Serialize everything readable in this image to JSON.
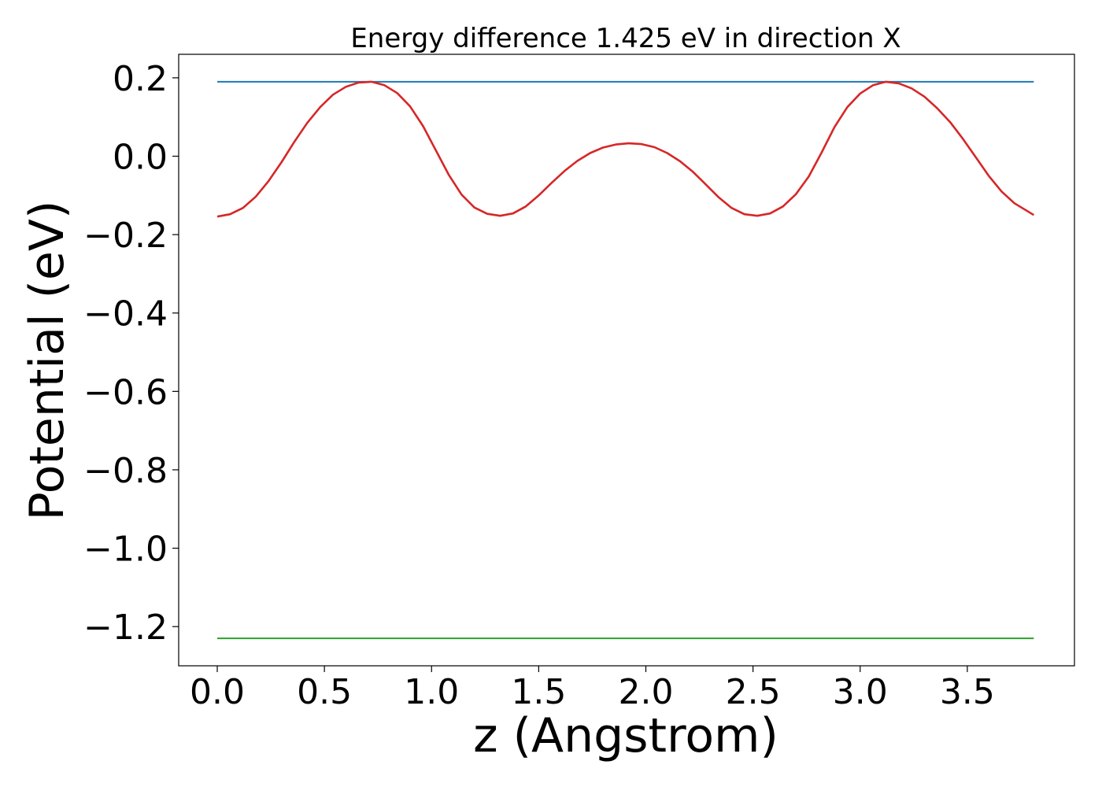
{
  "chart_data": {
    "type": "line",
    "title": "Energy difference 1.425 eV in direction X",
    "xlabel": "z (Angstrom)",
    "ylabel": "Potential (eV)",
    "xlim": [
      -0.18,
      4.0
    ],
    "ylim": [
      -1.3,
      0.26
    ],
    "xticks": [
      0.0,
      0.5,
      1.0,
      1.5,
      2.0,
      2.5,
      3.0,
      3.5
    ],
    "xtick_labels": [
      "0.0",
      "0.5",
      "1.0",
      "1.5",
      "2.0",
      "2.5",
      "3.0",
      "3.5"
    ],
    "yticks": [
      0.2,
      0.0,
      -0.2,
      -0.4,
      -0.6,
      -0.8,
      -1.0,
      -1.2
    ],
    "ytick_labels": [
      "0.2",
      "0.0",
      "−0.2",
      "−0.4",
      "−0.6",
      "−0.8",
      "−1.0",
      "−1.2"
    ],
    "grid": false,
    "series": [
      {
        "color": "#1f77b4",
        "x": [
          0.0,
          3.81
        ],
        "y": [
          0.19,
          0.19
        ]
      },
      {
        "color": "#2ca02c",
        "x": [
          0.0,
          3.81
        ],
        "y": [
          -1.23,
          -1.23
        ]
      },
      {
        "color": "#d62728",
        "x": [
          0.0,
          0.06,
          0.12,
          0.18,
          0.24,
          0.3,
          0.36,
          0.42,
          0.48,
          0.54,
          0.6,
          0.66,
          0.72,
          0.78,
          0.84,
          0.9,
          0.96,
          1.02,
          1.08,
          1.14,
          1.2,
          1.26,
          1.32,
          1.38,
          1.44,
          1.5,
          1.56,
          1.62,
          1.68,
          1.74,
          1.8,
          1.86,
          1.92,
          1.98,
          2.04,
          2.1,
          2.16,
          2.22,
          2.28,
          2.34,
          2.4,
          2.46,
          2.52,
          2.58,
          2.64,
          2.7,
          2.76,
          2.82,
          2.88,
          2.94,
          3.0,
          3.06,
          3.12,
          3.18,
          3.24,
          3.3,
          3.36,
          3.42,
          3.48,
          3.54,
          3.6,
          3.66,
          3.72,
          3.78,
          3.81
        ],
        "y": [
          -0.154,
          -0.148,
          -0.132,
          -0.103,
          -0.063,
          -0.015,
          0.037,
          0.085,
          0.125,
          0.157,
          0.177,
          0.188,
          0.19,
          0.181,
          0.161,
          0.127,
          0.077,
          0.015,
          -0.047,
          -0.098,
          -0.131,
          -0.147,
          -0.152,
          -0.146,
          -0.128,
          -0.1,
          -0.068,
          -0.038,
          -0.012,
          0.008,
          0.022,
          0.03,
          0.033,
          0.031,
          0.023,
          0.008,
          -0.013,
          -0.04,
          -0.072,
          -0.105,
          -0.132,
          -0.148,
          -0.152,
          -0.146,
          -0.128,
          -0.097,
          -0.052,
          0.009,
          0.074,
          0.125,
          0.16,
          0.181,
          0.19,
          0.186,
          0.173,
          0.152,
          0.122,
          0.087,
          0.044,
          -0.003,
          -0.05,
          -0.09,
          -0.12,
          -0.14,
          -0.15
        ]
      }
    ]
  }
}
